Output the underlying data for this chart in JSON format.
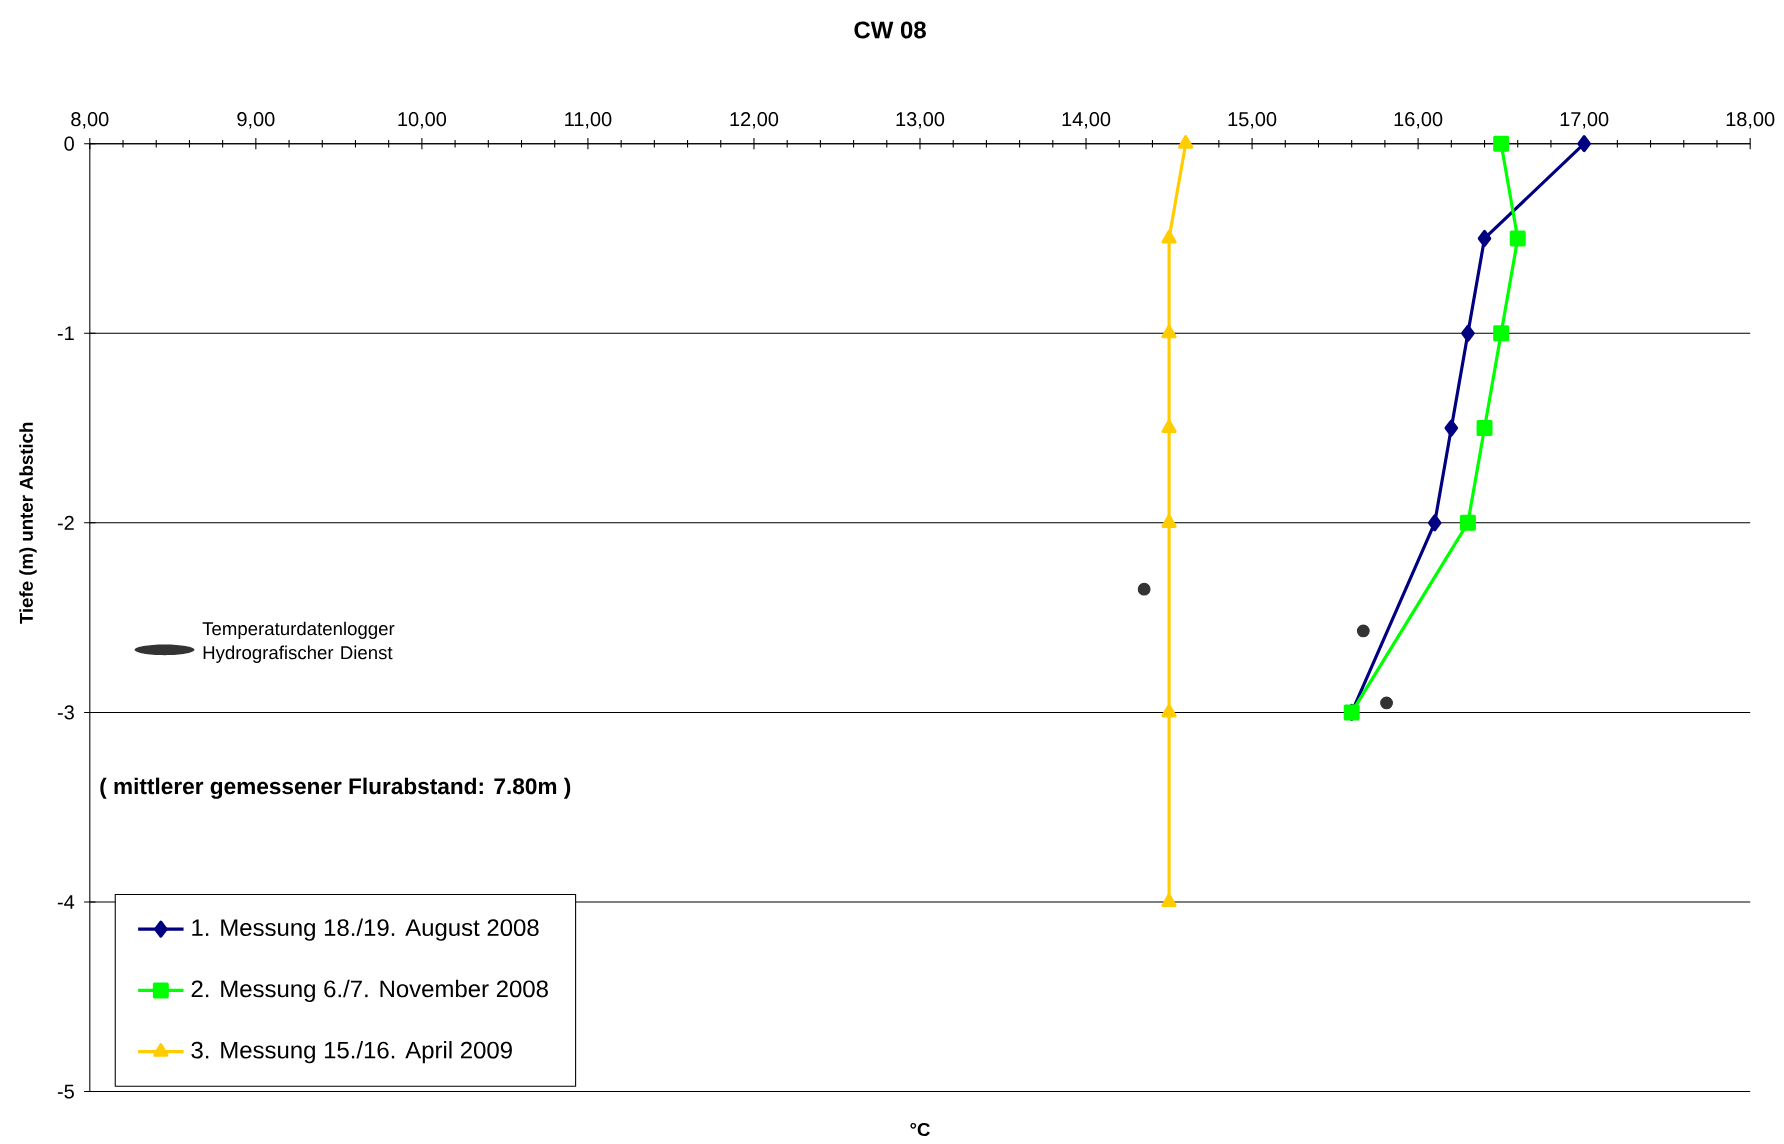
{
  "chart_data": {
    "type": "line",
    "title": "CW 08",
    "xlabel": "°C",
    "ylabel": "Tiefe (m) unter Abstich",
    "annotations": [
      "( mittlerer gemessener Flurabstand:  7.80m )"
    ],
    "xlim": [
      8,
      18
    ],
    "xticks": [
      {
        "value": 8,
        "label": "8,00"
      },
      {
        "value": 9,
        "label": "9,00"
      },
      {
        "value": 10,
        "label": "10,00"
      },
      {
        "value": 11,
        "label": "11,00"
      },
      {
        "value": 12,
        "label": "12,00"
      },
      {
        "value": 13,
        "label": "13,00"
      },
      {
        "value": 14,
        "label": "14,00"
      },
      {
        "value": 15,
        "label": "15,00"
      },
      {
        "value": 16,
        "label": "16,00"
      },
      {
        "value": 17,
        "label": "17,00"
      },
      {
        "value": 18,
        "label": "18,00"
      }
    ],
    "ylim": [
      -5,
      0
    ],
    "yticks": [
      0,
      -1,
      -2,
      -3,
      -4,
      -5
    ],
    "grid": "y",
    "legend": "bottom left",
    "line_style": "solid",
    "series": [
      {
        "name": "1. Messung 18./19. August 2008",
        "color": "#000080",
        "marker": "diamond",
        "x": [
          17.0,
          16.4,
          16.3,
          16.2,
          16.1,
          15.6
        ],
        "values": [
          0,
          -0.5,
          -1,
          -1.5,
          -2,
          -3
        ]
      },
      {
        "name": "2. Messung 6./7. November 2008",
        "color": "#00ff00",
        "marker": "square",
        "x": [
          16.5,
          16.6,
          16.5,
          16.4,
          16.3,
          15.6
        ],
        "values": [
          0,
          -0.5,
          -1,
          -1.5,
          -2,
          -3
        ]
      },
      {
        "name": "3. Messung 15./16. April 2009",
        "color": "#ffcc00",
        "marker": "triangle",
        "x": [
          14.6,
          14.5,
          14.5,
          14.5,
          14.5,
          14.5,
          14.5
        ],
        "values": [
          0,
          -0.5,
          -1,
          -1.5,
          -2,
          -3,
          -4
        ]
      },
      {
        "name": "Temperaturdatenlogger Hydrografischer Dienst",
        "type": "scatter",
        "color": "#333333",
        "marker": "circle",
        "x": [
          14.35,
          15.67,
          15.81
        ],
        "values": [
          -2.35,
          -2.57,
          -2.95
        ]
      }
    ]
  }
}
